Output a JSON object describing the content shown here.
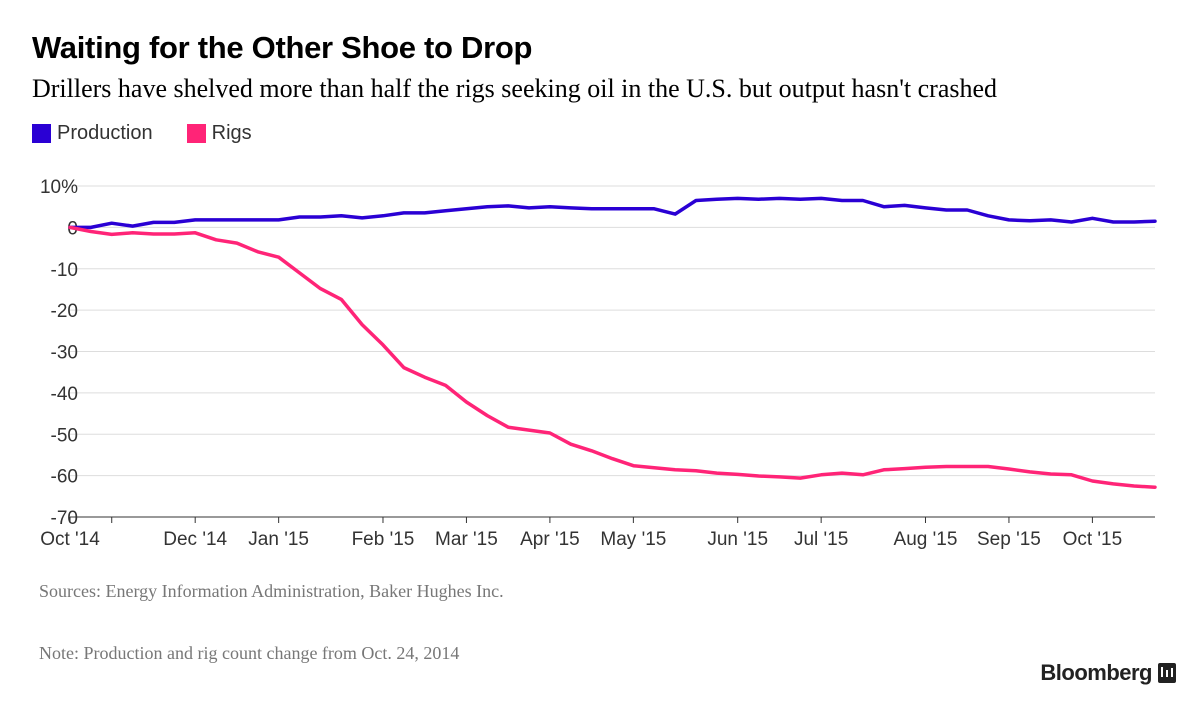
{
  "header": {
    "title": "Waiting for the Other Shoe to Drop",
    "subtitle": "Drillers have shelved more than half the rigs seeking oil in the U.S. but output hasn't crashed"
  },
  "legend": [
    {
      "label": "Production",
      "color": "#2a00d4"
    },
    {
      "label": "Rigs",
      "color": "#ff2477"
    }
  ],
  "footer": {
    "source": "Sources: Energy Information Administration, Baker Hughes Inc.",
    "note": "Note: Production and rig count change from Oct. 24, 2014",
    "brand": "Bloomberg",
    "brand_icon": "bloomberg-terminal-icon"
  },
  "chart_data": {
    "type": "line",
    "x": [
      "2014-10-24",
      "2014-10-31",
      "2014-11-07",
      "2014-11-14",
      "2014-11-21",
      "2014-11-28",
      "2014-12-05",
      "2014-12-12",
      "2014-12-19",
      "2014-12-26",
      "2015-01-02",
      "2015-01-09",
      "2015-01-16",
      "2015-01-23",
      "2015-01-30",
      "2015-02-06",
      "2015-02-13",
      "2015-02-20",
      "2015-02-27",
      "2015-03-06",
      "2015-03-13",
      "2015-03-20",
      "2015-03-27",
      "2015-04-03",
      "2015-04-10",
      "2015-04-17",
      "2015-04-24",
      "2015-05-01",
      "2015-05-08",
      "2015-05-15",
      "2015-05-22",
      "2015-05-29",
      "2015-06-05",
      "2015-06-12",
      "2015-06-19",
      "2015-06-26",
      "2015-07-03",
      "2015-07-10",
      "2015-07-17",
      "2015-07-24",
      "2015-07-31",
      "2015-08-07",
      "2015-08-14",
      "2015-08-21",
      "2015-08-28",
      "2015-09-04",
      "2015-09-11",
      "2015-09-18",
      "2015-09-25",
      "2015-10-02",
      "2015-10-09",
      "2015-10-16",
      "2015-10-23"
    ],
    "series": [
      {
        "name": "Production",
        "color": "#2a00d4",
        "values": [
          0,
          0,
          1,
          0.3,
          1.2,
          1.2,
          1.8,
          1.8,
          1.8,
          1.8,
          1.8,
          2.5,
          2.5,
          2.8,
          2.3,
          2.8,
          3.5,
          3.5,
          4,
          4.5,
          5,
          5.2,
          4.7,
          5,
          4.7,
          4.5,
          4.5,
          4.5,
          4.5,
          3.2,
          6.5,
          6.8,
          7,
          6.8,
          7,
          6.8,
          7,
          6.5,
          6.5,
          5,
          5.3,
          4.7,
          4.2,
          4.2,
          2.8,
          1.8,
          1.6,
          1.8,
          1.3,
          2.2,
          1.3,
          1.3,
          1.5
        ]
      },
      {
        "name": "Rigs",
        "color": "#ff2477",
        "values": [
          0,
          -1,
          -1.7,
          -1.3,
          -1.6,
          -1.6,
          -1.3,
          -3,
          -3.8,
          -5.9,
          -7.2,
          -11,
          -14.8,
          -17.4,
          -23.5,
          -28.4,
          -33.9,
          -36.2,
          -38.2,
          -42.2,
          -45.5,
          -48.3,
          -49,
          -49.7,
          -52.4,
          -54,
          -55.9,
          -57.6,
          -58.1,
          -58.6,
          -58.8,
          -59.4,
          -59.7,
          -60.1,
          -60.3,
          -60.6,
          -59.8,
          -59.4,
          -59.8,
          -58.6,
          -58.3,
          -58,
          -57.8,
          -57.8,
          -57.8,
          -58.4,
          -59.1,
          -59.6,
          -59.8,
          -61.3,
          -62,
          -62.5,
          -62.8
        ]
      }
    ],
    "y_ticks": [
      10,
      0,
      -10,
      -20,
      -30,
      -40,
      -50,
      -60,
      -70
    ],
    "y_tick_labels": [
      "10%",
      "0",
      "-10",
      "-20",
      "-30",
      "-40",
      "-50",
      "-60",
      "-70"
    ],
    "ylim": [
      -70,
      10
    ],
    "x_ticks": [
      {
        "date": "2014-10-24",
        "label": "Oct '14"
      },
      {
        "date": "2014-11-07",
        "label": ""
      },
      {
        "date": "2014-12-05",
        "label": "Dec '14"
      },
      {
        "date": "2015-01-02",
        "label": "Jan '15"
      },
      {
        "date": "2015-02-06",
        "label": "Feb '15"
      },
      {
        "date": "2015-03-06",
        "label": "Mar '15"
      },
      {
        "date": "2015-04-03",
        "label": "Apr '15"
      },
      {
        "date": "2015-05-01",
        "label": "May '15"
      },
      {
        "date": "2015-06-05",
        "label": "Jun '15"
      },
      {
        "date": "2015-07-03",
        "label": "Jul '15"
      },
      {
        "date": "2015-08-07",
        "label": "Aug '15"
      },
      {
        "date": "2015-09-04",
        "label": "Sep '15"
      },
      {
        "date": "2015-10-02",
        "label": "Oct '15"
      }
    ],
    "xlim": [
      "2014-10-24",
      "2015-10-23"
    ],
    "grid": true,
    "legend_position": "top-left"
  }
}
